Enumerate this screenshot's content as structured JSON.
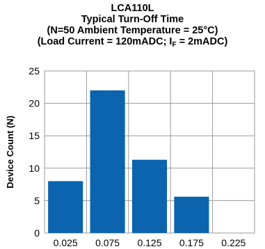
{
  "chart_data": {
    "type": "bar",
    "title": "LCA110L",
    "subtitle": "Typical Turn-Off Time",
    "subtitle2": "(N=50 Ambient Temperature = 25°C)",
    "subtitle3_pre": "(Load Current = 120mADC; I",
    "subtitle3_sub": "F",
    "subtitle3_post": " = 2mADC)",
    "xlabel": "",
    "ylabel": "Device Count (N)",
    "categories": [
      "0.025",
      "0.075",
      "0.125",
      "0.175",
      "0.225"
    ],
    "values": [
      8,
      22,
      11.3,
      5.6,
      0
    ],
    "ylim": [
      0,
      25
    ],
    "yticks": [
      0,
      5,
      10,
      15,
      20,
      25
    ],
    "grid": true,
    "bar_color": "#0b64ad"
  }
}
